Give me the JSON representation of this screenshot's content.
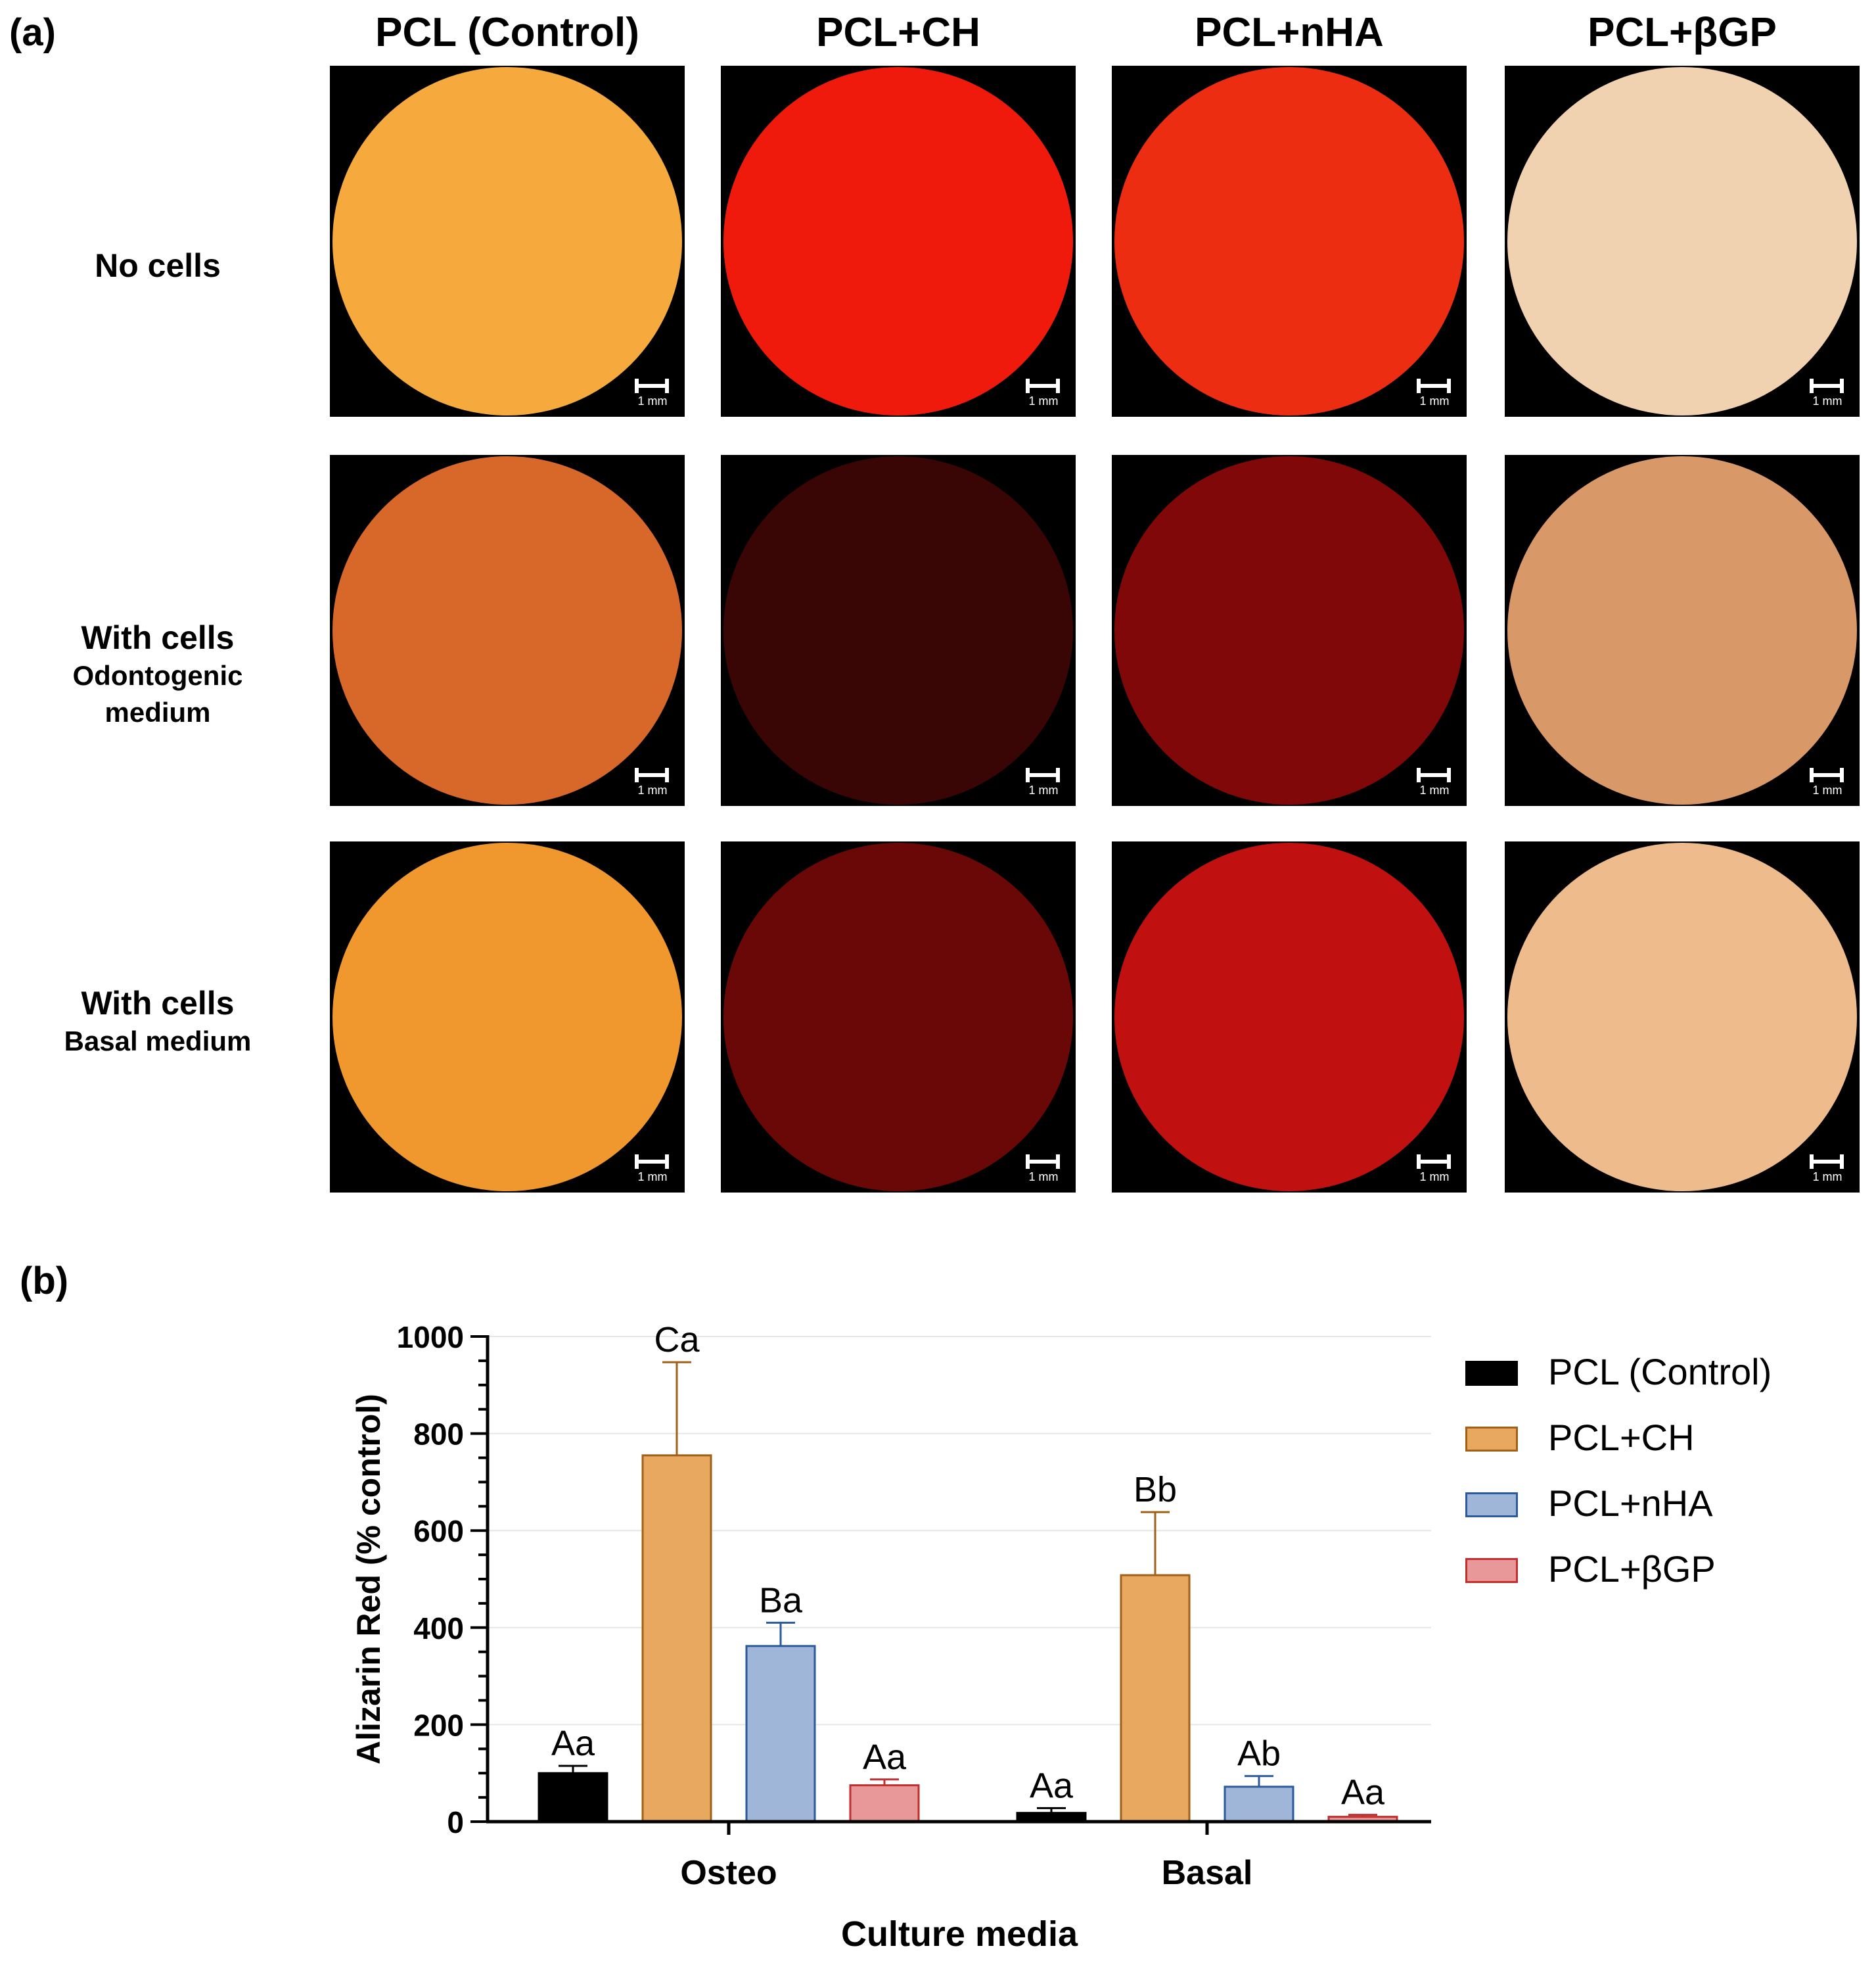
{
  "panel_a": {
    "label": "(a)",
    "columns": [
      "PCL (Control)",
      "PCL+CH",
      "PCL+nHA",
      "PCL+βGP"
    ],
    "rows": [
      {
        "line1": "No cells",
        "line2": ""
      },
      {
        "line1": "With cells",
        "line2": "Odontogenic",
        "line3": "medium"
      },
      {
        "line1": "With cells",
        "line2": "Basal medium"
      }
    ],
    "scale_label": "1 mm",
    "colors": [
      [
        "#f6a93c",
        "#f01a0c",
        "#ec2d12",
        "#f1d2b0"
      ],
      [
        "#d8682a",
        "#3a0505",
        "#800808",
        "#d89868"
      ],
      [
        "#f0982e",
        "#6a0808",
        "#c01010",
        "#eebc8c"
      ]
    ]
  },
  "panel_b": {
    "label": "(b)"
  },
  "chart_data": {
    "type": "bar",
    "categories": [
      "Osteo",
      "Basal"
    ],
    "xlabel": "Culture media",
    "ylabel": "Alizarin Red (% control)",
    "ylim": [
      0,
      1000
    ],
    "yticks": [
      0,
      200,
      400,
      600,
      800,
      1000
    ],
    "legend_position": "right",
    "series": [
      {
        "name": "PCL (Control)",
        "fill": "#000000",
        "stroke": "#000000",
        "values": [
          100,
          18
        ],
        "errors": [
          15,
          10
        ],
        "labels": [
          "Aa",
          "Aa"
        ]
      },
      {
        "name": "PCL+CH",
        "fill": "#e8a860",
        "stroke": "#a06018",
        "values": [
          755,
          508
        ],
        "errors": [
          192,
          130
        ],
        "labels": [
          "Ca",
          "Bb"
        ]
      },
      {
        "name": "PCL+nHA",
        "fill": "#9fb6d8",
        "stroke": "#2c5a9a",
        "values": [
          362,
          72
        ],
        "errors": [
          48,
          22
        ],
        "labels": [
          "Ba",
          "Ab"
        ]
      },
      {
        "name": "PCL+βGP",
        "fill": "#e89898",
        "stroke": "#c03030",
        "values": [
          75,
          10
        ],
        "errors": [
          12,
          4
        ],
        "labels": [
          "Aa",
          "Aa"
        ]
      }
    ]
  }
}
